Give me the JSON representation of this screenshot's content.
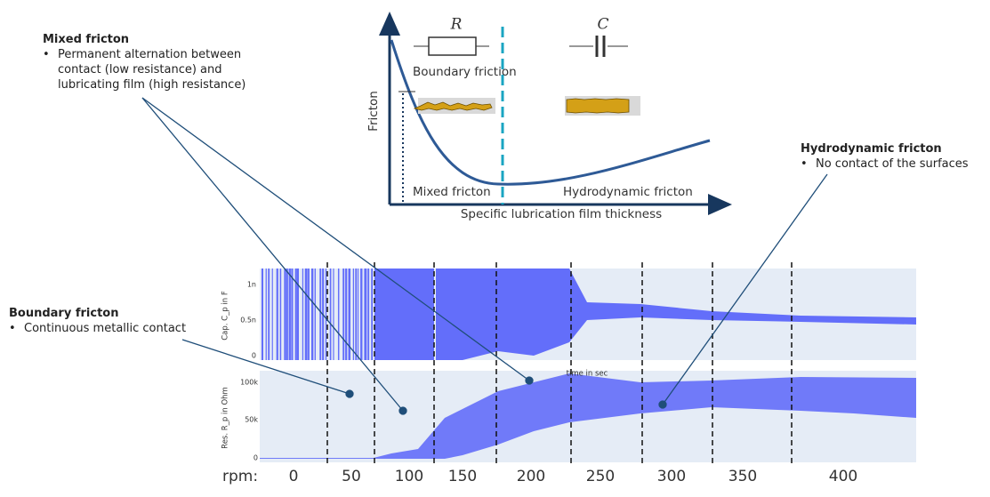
{
  "annotations": {
    "mixed": {
      "title": "Mixed fricton",
      "bullet": "Permanent alternation between contact (low resistance) and lubricating film (high resistance)"
    },
    "boundary": {
      "title": "Boundary fricton",
      "bullet": "Continuous metallic contact"
    },
    "hydrodynamic": {
      "title": "Hydrodynamic fricton",
      "bullet": "No contact of the surfaces"
    }
  },
  "schematic": {
    "resistor_label": "R",
    "capacitor_label": "C",
    "boundary_label": "Boundary friction",
    "mixed_label": "Mixed fricton",
    "hydrodynamic_label": "Hydrodynamic fricton",
    "y_label": "Fricton",
    "x_label": "Specific lubrication film thickness"
  },
  "plots": {
    "top": {
      "y_label": "Cap. C_p in F",
      "yticks": [
        "1n",
        "0.5n",
        "0"
      ]
    },
    "bottom": {
      "y_label": "Res. R_p in Ohm",
      "yticks": [
        "100k",
        "50k",
        "0"
      ],
      "x_label": "time in sec"
    }
  },
  "rpm": {
    "label": "rpm:",
    "values": [
      0,
      50,
      100,
      150,
      200,
      250,
      300,
      350,
      400
    ]
  }
}
